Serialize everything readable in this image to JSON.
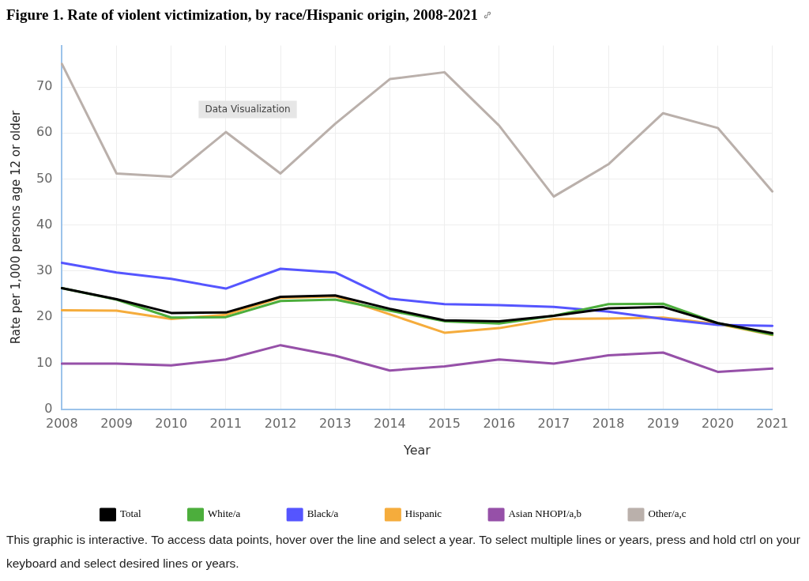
{
  "chart_data": {
    "type": "line",
    "title": "Figure 1.  Rate of violent victimization, by race/Hispanic origin, 2008-2021",
    "xlabel": "Year",
    "ylabel": "Rate per 1,000 persons age 12 or older",
    "categories": [
      "2008",
      "2009",
      "2010",
      "2011",
      "2012",
      "2013",
      "2014",
      "2015",
      "2016",
      "2017",
      "2018",
      "2019",
      "2020",
      "2021"
    ],
    "series": [
      {
        "name": "Total",
        "color": "#000000",
        "values": [
          26.3,
          23.9,
          20.9,
          21.0,
          24.4,
          24.7,
          21.8,
          19.3,
          19.1,
          20.3,
          21.9,
          22.2,
          18.7,
          16.5
        ]
      },
      {
        "name": "White/a",
        "color": "#4cae3c",
        "values": [
          26.3,
          23.8,
          19.9,
          20.0,
          23.5,
          23.8,
          21.4,
          19.1,
          18.6,
          20.3,
          22.8,
          22.9,
          18.7,
          16.2
        ]
      },
      {
        "name": "Black/a",
        "color": "#5555ff",
        "values": [
          31.8,
          29.7,
          28.3,
          26.2,
          30.5,
          29.7,
          24.0,
          22.8,
          22.6,
          22.2,
          21.2,
          19.6,
          18.3,
          18.1
        ]
      },
      {
        "name": "Hispanic",
        "color": "#f5ac3c",
        "values": [
          21.5,
          21.4,
          19.6,
          20.5,
          24.2,
          24.5,
          20.6,
          16.6,
          17.6,
          19.6,
          19.7,
          19.9,
          18.5,
          16.1
        ]
      },
      {
        "name": "Asian NHOPI/a,b",
        "color": "#9650a8",
        "values": [
          9.9,
          9.9,
          9.5,
          10.8,
          13.9,
          11.6,
          8.4,
          9.3,
          10.8,
          9.9,
          11.7,
          12.3,
          8.1,
          8.8
        ]
      },
      {
        "name": "Other/a,c",
        "color": "#bab0ab",
        "values": [
          75.0,
          51.2,
          50.5,
          60.2,
          51.2,
          62.0,
          71.7,
          73.2,
          61.6,
          46.2,
          53.2,
          64.3,
          61.1,
          47.3
        ]
      }
    ],
    "ylim": [
      0,
      79
    ],
    "yticks": [
      0,
      10,
      20,
      30,
      40,
      50,
      60,
      70
    ],
    "grid": true,
    "legend": "bottom",
    "marker": "none",
    "line_style": "solid",
    "annotations": [
      "Data Visualization",
      "This graphic is interactive. To access data points, hover over the line and select a year. To select multiple lines or years, press and hold ctrl on your keyboard and select desired lines or years."
    ]
  }
}
